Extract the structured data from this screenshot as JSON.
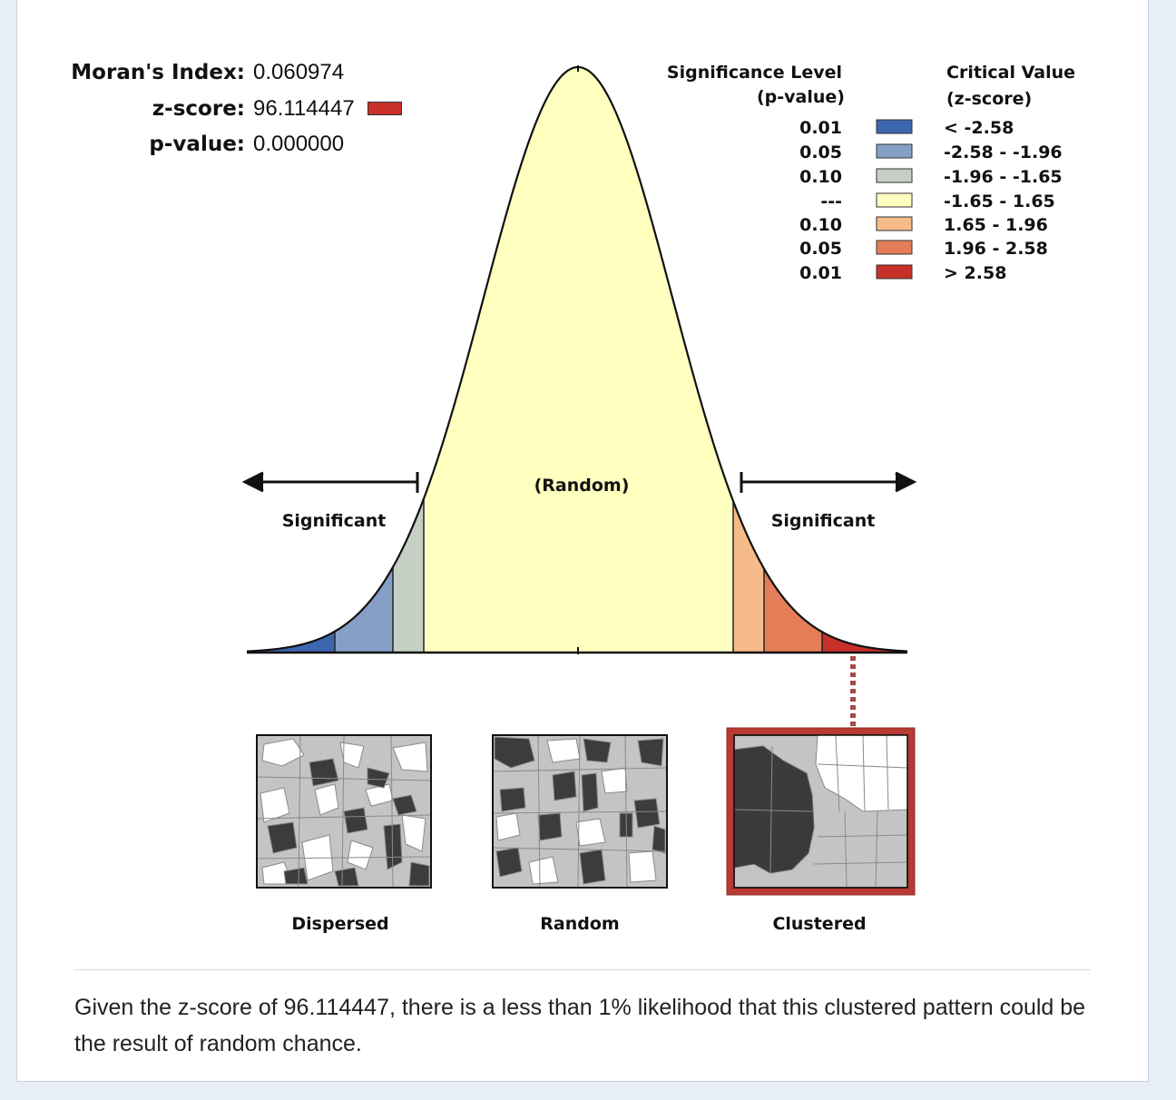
{
  "stats": {
    "morans_index_label": "Moran's Index:",
    "morans_index_value": "0.060974",
    "z_score_label": "z-score:",
    "z_score_value": "96.114447",
    "z_score_swatch_color": "#c8302a",
    "p_value_label": "p-value:",
    "p_value_value": "0.000000"
  },
  "legend": {
    "significance_header_line1": "Significance Level",
    "significance_header_line2": "(p-value)",
    "critical_header_line1": "Critical Value",
    "critical_header_line2": "(z-score)",
    "rows": [
      {
        "p": "0.01",
        "z": "< -2.58",
        "color": "#3d66b0"
      },
      {
        "p": "0.05",
        "z": "-2.58 - -1.96",
        "color": "#869fc6"
      },
      {
        "p": "0.10",
        "z": "-1.96 - -1.65",
        "color": "#c6cfc4"
      },
      {
        "p": "---",
        "z": "-1.65 - 1.65",
        "color": "#ffffc0"
      },
      {
        "p": "0.10",
        "z": "1.65 - 1.96",
        "color": "#f5bb88"
      },
      {
        "p": "0.05",
        "z": "1.96 - 2.58",
        "color": "#e57e58"
      },
      {
        "p": "0.01",
        "z": "> 2.58",
        "color": "#c8302a"
      }
    ]
  },
  "curve": {
    "center_label": "(Random)",
    "left_label": "Significant",
    "right_label": "Significant",
    "highlight_color": "#c8302a"
  },
  "maps": {
    "dispersed_label": "Dispersed",
    "random_label": "Random",
    "clustered_label": "Clustered",
    "highlighted": "Clustered"
  },
  "conclusion": "Given the z-score of 96.114447, there is a less than 1% likelihood that this clustered pattern could be the result of random chance."
}
